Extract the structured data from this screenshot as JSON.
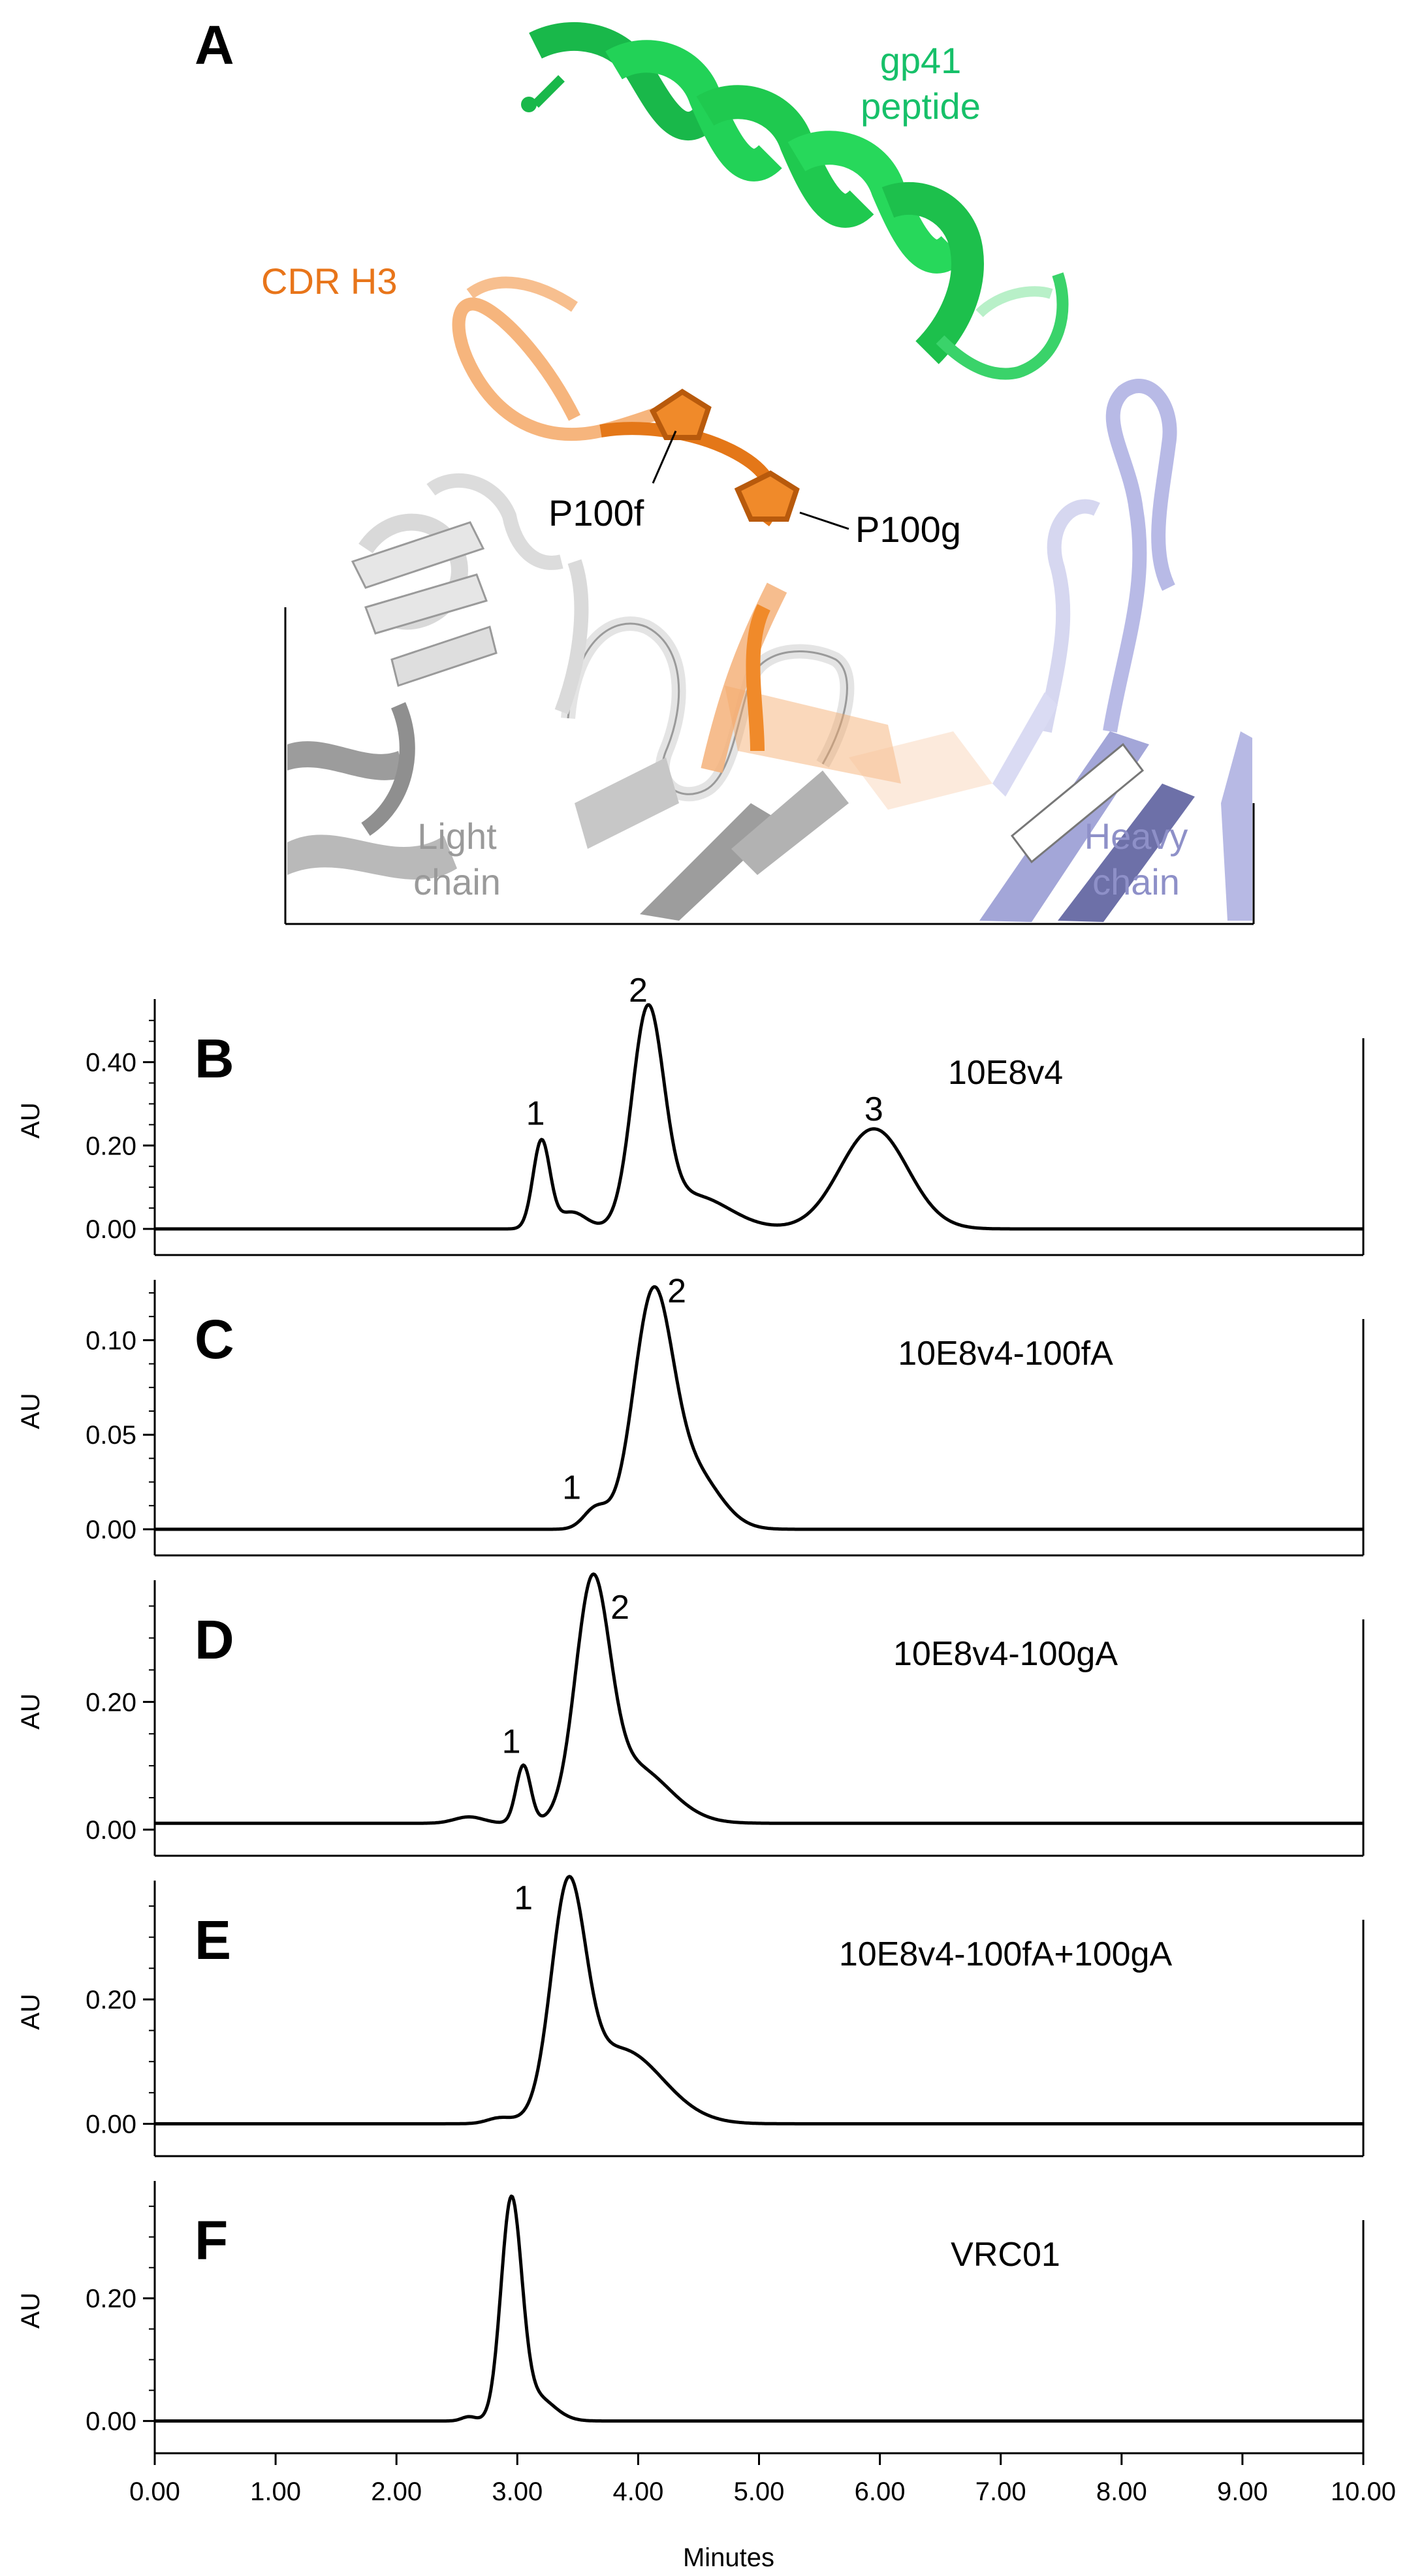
{
  "panel_a": {
    "letter": "A",
    "labels": {
      "gp41_line1": "gp41",
      "gp41_line2": "peptide",
      "cdr": "CDR H3",
      "p100f": "P100f",
      "p100g": "P100g",
      "light_line1": "Light",
      "light_line2": "chain",
      "heavy_line1": "Heavy",
      "heavy_line2": "chain"
    },
    "colors": {
      "gp41": "#1fd15a",
      "gp41_text": "#16c069",
      "cdr": "#f08a2a",
      "cdr_text": "#e8751a",
      "light_chain": "#c8c8c8",
      "heavy_chain": "#aeb0dc"
    }
  },
  "x_axis": {
    "title": "Minutes",
    "ticks": [
      "0.00",
      "1.00",
      "2.00",
      "3.00",
      "4.00",
      "5.00",
      "6.00",
      "7.00",
      "8.00",
      "9.00",
      "10.00"
    ]
  },
  "chart_data": [
    {
      "type": "line",
      "letter": "B",
      "sample": "10E8v4",
      "ylabel": "AU",
      "xlim": [
        0,
        10
      ],
      "ylim": [
        0,
        0.52
      ],
      "yticks": [
        0.0,
        0.2,
        0.4
      ],
      "ytick_labels": [
        "0.00",
        "0.20",
        "0.40"
      ],
      "baseline": 0.0,
      "peaks": [
        {
          "t": 3.2,
          "h": 0.21,
          "w": 0.07
        },
        {
          "t": 3.45,
          "h": 0.04,
          "w": 0.12
        },
        {
          "t": 4.08,
          "h": 0.5,
          "w": 0.13
        },
        {
          "t": 4.45,
          "h": 0.08,
          "w": 0.3
        },
        {
          "t": 5.95,
          "h": 0.24,
          "w": 0.28
        }
      ],
      "peak_labels": [
        {
          "text": "1",
          "t": 3.15,
          "y": 0.25
        },
        {
          "text": "2",
          "t": 4.0,
          "y": 0.545
        },
        {
          "text": "3",
          "t": 5.95,
          "y": 0.26
        }
      ]
    },
    {
      "type": "line",
      "letter": "C",
      "sample": "10E8v4-100fA",
      "ylabel": "AU",
      "xlim": [
        0,
        10
      ],
      "ylim": [
        0,
        0.125
      ],
      "yticks": [
        0.0,
        0.05,
        0.1
      ],
      "ytick_labels": [
        "0.00",
        "0.05",
        "0.10"
      ],
      "baseline": 0.0,
      "peaks": [
        {
          "t": 3.65,
          "h": 0.011,
          "w": 0.1
        },
        {
          "t": 4.12,
          "h": 0.118,
          "w": 0.16
        },
        {
          "t": 4.45,
          "h": 0.03,
          "w": 0.22
        }
      ],
      "peak_labels": [
        {
          "text": "1",
          "t": 3.45,
          "y": 0.016
        },
        {
          "text": "2",
          "t": 4.32,
          "y": 0.12
        }
      ]
    },
    {
      "type": "line",
      "letter": "D",
      "sample": "10E8v4-100gA",
      "ylabel": "AU",
      "xlim": [
        0,
        10
      ],
      "ylim": [
        0,
        0.37
      ],
      "yticks": [
        0.0,
        0.2
      ],
      "ytick_labels": [
        "0.00",
        "0.20"
      ],
      "baseline": 0.01,
      "peaks": [
        {
          "t": 2.6,
          "h": 0.01,
          "w": 0.12
        },
        {
          "t": 3.05,
          "h": 0.09,
          "w": 0.06
        },
        {
          "t": 3.62,
          "h": 0.34,
          "w": 0.14
        },
        {
          "t": 3.95,
          "h": 0.09,
          "w": 0.3
        }
      ],
      "peak_labels": [
        {
          "text": "1",
          "t": 2.95,
          "y": 0.12
        },
        {
          "text": "2",
          "t": 3.85,
          "y": 0.33
        }
      ]
    },
    {
      "type": "line",
      "letter": "E",
      "sample": "10E8v4-100fA+100gA",
      "ylabel": "AU",
      "xlim": [
        0,
        10
      ],
      "ylim": [
        -0.01,
        0.37
      ],
      "yticks": [
        0.0,
        0.2
      ],
      "ytick_labels": [
        "0.00",
        "0.20"
      ],
      "baseline": 0.0,
      "peaks": [
        {
          "t": 2.85,
          "h": 0.008,
          "w": 0.1
        },
        {
          "t": 3.42,
          "h": 0.34,
          "w": 0.14
        },
        {
          "t": 3.85,
          "h": 0.12,
          "w": 0.35
        }
      ],
      "peak_labels": [
        {
          "text": "1",
          "t": 3.05,
          "y": 0.345
        }
      ]
    },
    {
      "type": "line",
      "letter": "F",
      "sample": "VRC01",
      "ylabel": "AU",
      "xlim": [
        0,
        10
      ],
      "ylim": [
        -0.01,
        0.37
      ],
      "yticks": [
        0.0,
        0.2
      ],
      "ytick_labels": [
        "0.00",
        "0.20"
      ],
      "baseline": 0.0,
      "peaks": [
        {
          "t": 2.6,
          "h": 0.007,
          "w": 0.06
        },
        {
          "t": 2.95,
          "h": 0.35,
          "w": 0.085
        },
        {
          "t": 3.15,
          "h": 0.04,
          "w": 0.15
        }
      ],
      "peak_labels": []
    }
  ]
}
